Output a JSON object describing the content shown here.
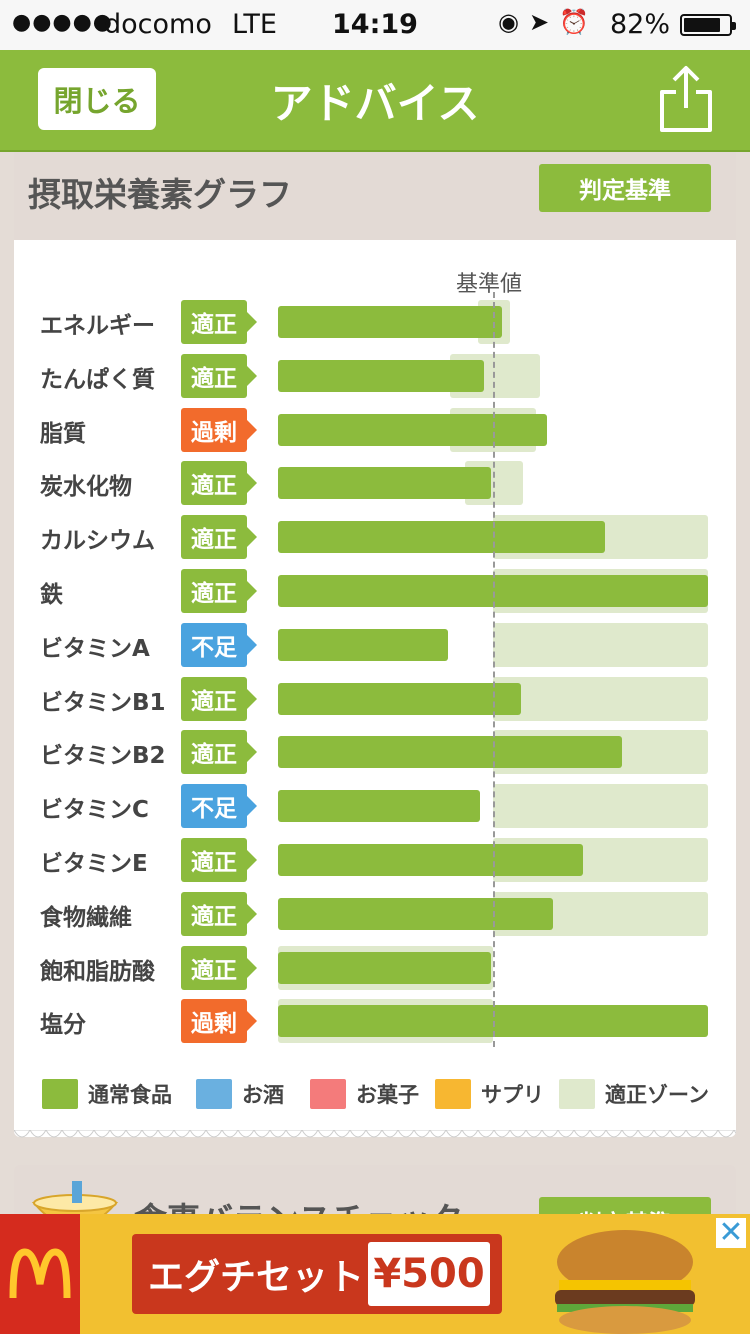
{
  "status_bar": {
    "signal_dots": "●●●●●",
    "carrier": "docomo",
    "network": "LTE",
    "time": "14:19",
    "battery": "82%",
    "battery_level_percent": 82
  },
  "header": {
    "close_label": "閉じる",
    "title": "アドバイス",
    "share_icon": "share-icon"
  },
  "nutrient_card": {
    "heading": "摂取栄養素グラフ",
    "criteria_label": "判定基準",
    "baseline_label": "基準値",
    "nutrients": [
      {
        "name": "エネルギー",
        "status": "適正",
        "status_color": "#8cbb3d",
        "level_pct": 104,
        "zone_pct": [
          93,
          108
        ]
      },
      {
        "name": "たんぱく質",
        "status": "適正",
        "status_color": "#8cbb3d",
        "level_pct": 96,
        "zone_pct": [
          80,
          122
        ]
      },
      {
        "name": "脂質",
        "status": "過剰",
        "status_color": "#f26b2c",
        "level_pct": 125,
        "zone_pct": [
          80,
          120
        ]
      },
      {
        "name": "炭水化物",
        "status": "適正",
        "status_color": "#8cbb3d",
        "level_pct": 99,
        "zone_pct": [
          87,
          114
        ]
      },
      {
        "name": "カルシウム",
        "status": "適正",
        "status_color": "#8cbb3d",
        "level_pct": 152,
        "zone_pct": [
          100,
          200
        ]
      },
      {
        "name": "鉄",
        "status": "適正",
        "status_color": "#8cbb3d",
        "level_pct": 200,
        "zone_pct": [
          100,
          200
        ]
      },
      {
        "name": "ビタミンA",
        "status": "不足",
        "status_color": "#4aa3df",
        "level_pct": 79,
        "zone_pct": [
          100,
          200
        ]
      },
      {
        "name": "ビタミンB1",
        "status": "適正",
        "status_color": "#8cbb3d",
        "level_pct": 113,
        "zone_pct": [
          100,
          200
        ]
      },
      {
        "name": "ビタミンB2",
        "status": "適正",
        "status_color": "#8cbb3d",
        "level_pct": 160,
        "zone_pct": [
          100,
          200
        ]
      },
      {
        "name": "ビタミンC",
        "status": "不足",
        "status_color": "#4aa3df",
        "level_pct": 94,
        "zone_pct": [
          100,
          200
        ]
      },
      {
        "name": "ビタミンE",
        "status": "適正",
        "status_color": "#8cbb3d",
        "level_pct": 142,
        "zone_pct": [
          100,
          200
        ]
      },
      {
        "name": "食物繊維",
        "status": "適正",
        "status_color": "#8cbb3d",
        "level_pct": 128,
        "zone_pct": [
          100,
          200
        ]
      },
      {
        "name": "飽和脂肪酸",
        "status": "適正",
        "status_color": "#8cbb3d",
        "level_pct": 99,
        "zone_pct": [
          0,
          100
        ]
      },
      {
        "name": "塩分",
        "status": "過剰",
        "status_color": "#f26b2c",
        "level_pct": 200,
        "zone_pct": [
          0,
          100
        ]
      }
    ],
    "legend": [
      {
        "label": "通常食品",
        "color": "#8cbb3d"
      },
      {
        "label": "お酒",
        "color": "#6ab0e0"
      },
      {
        "label": "お菓子",
        "color": "#f47b7b"
      },
      {
        "label": "サプリ",
        "color": "#f7b731"
      },
      {
        "label": "適正ゾーン",
        "color": "#dfe9cc"
      }
    ]
  },
  "balance_card": {
    "heading": "食事バランスチェック",
    "criteria_label": "判定基準"
  },
  "ad_banner": {
    "brand": "M",
    "promo_name": "エグチセット",
    "price": "¥500",
    "close_label": "✕"
  }
}
